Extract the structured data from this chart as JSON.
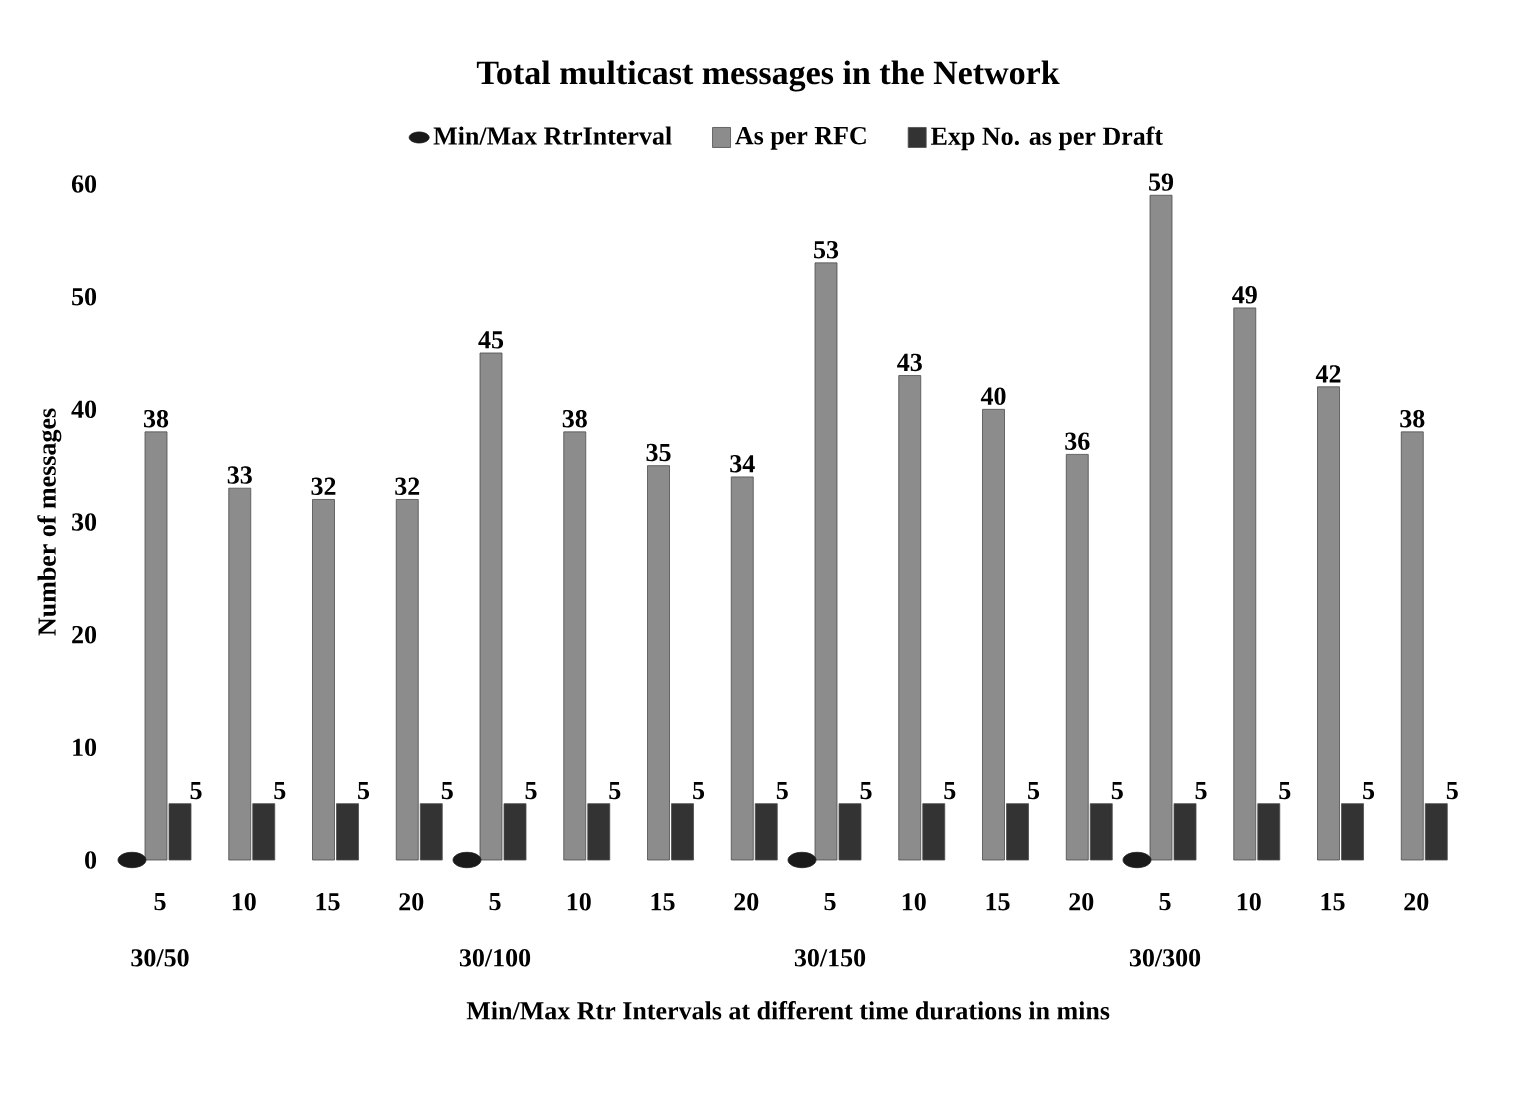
{
  "chart_data": {
    "type": "bar",
    "title": "Total multicast messages in the Network",
    "xlabel": "Min/Max Rtr Intervals at different time durations in mins",
    "ylabel": "Number of messages",
    "categories": [
      "5",
      "10",
      "15",
      "20",
      "5",
      "10",
      "15",
      "20",
      "5",
      "10",
      "15",
      "20",
      "5",
      "10",
      "15",
      "20"
    ],
    "annotations": [
      "30/50",
      "30/100",
      "30/150",
      "30/300"
    ],
    "ylim": [
      0,
      60
    ],
    "yticks": [
      0,
      10,
      20,
      30,
      40,
      50,
      60
    ],
    "legend": "top",
    "series": [
      {
        "name": "Min/Max RtrInterval",
        "type": "scatter",
        "marker": "circle",
        "color": "#1a1a1a",
        "values": [
          0,
          null,
          null,
          null,
          0,
          null,
          null,
          null,
          0,
          null,
          null,
          null,
          0,
          null,
          null,
          null
        ]
      },
      {
        "name": "As per RFC",
        "color": "#8c8c8c",
        "values": [
          38,
          33,
          32,
          32,
          45,
          38,
          35,
          34,
          53,
          43,
          40,
          36,
          59,
          49,
          42,
          38
        ],
        "value_labels": [
          "38",
          "33",
          "32",
          "32",
          "45",
          "38",
          "35",
          "34",
          "53",
          "43",
          "40",
          "36",
          "59",
          "49",
          "42",
          "38"
        ]
      },
      {
        "name": "Exp  No. as per Draft",
        "color": "#333333",
        "values": [
          5,
          5,
          5,
          5,
          5,
          5,
          5,
          5,
          5,
          5,
          5,
          5,
          5,
          5,
          5,
          5
        ],
        "value_labels": [
          "5",
          "5",
          "5",
          "5",
          "5",
          "5",
          "5",
          "5",
          "5",
          "5",
          "5",
          "5",
          "5",
          "5",
          "5",
          "5"
        ]
      }
    ]
  }
}
